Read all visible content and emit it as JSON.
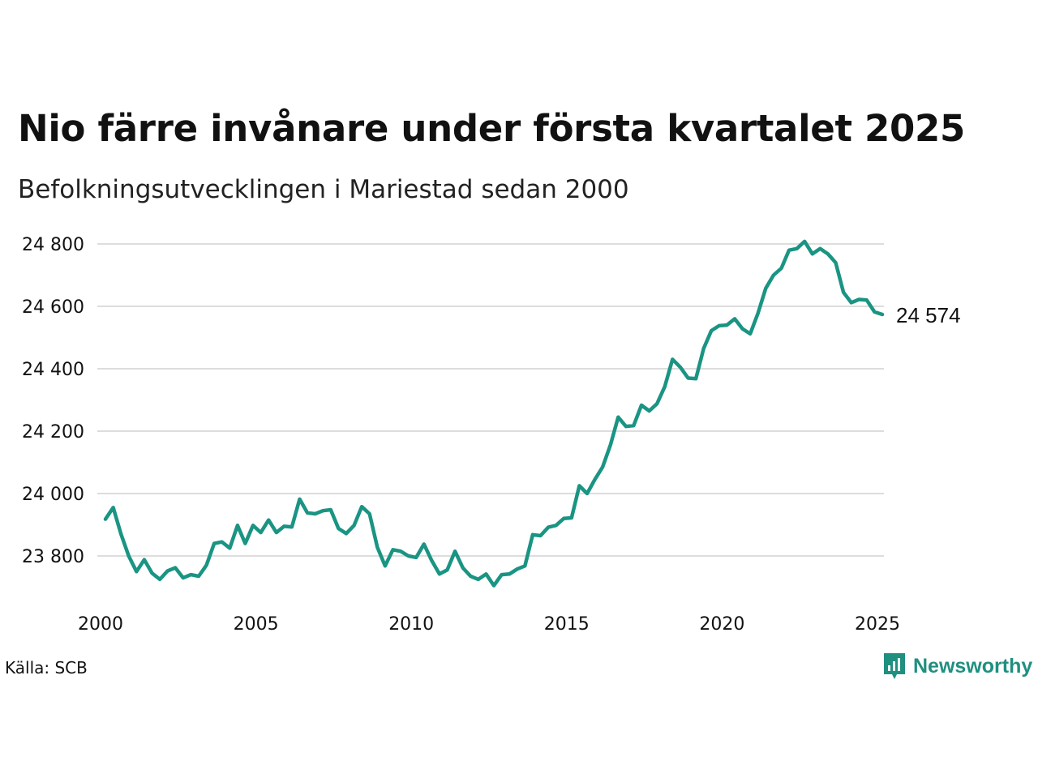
{
  "title": "Nio färre invånare under första kvartalet 2025",
  "subtitle": "Befolkningsutvecklingen i Mariestad sedan 2000",
  "source": "Källa: SCB",
  "brand": "Newsworthy",
  "colors": {
    "line": "#1a9483",
    "grid": "#dddddd",
    "brand": "#1f8f80"
  },
  "chart_data": {
    "type": "line",
    "x_ticks": [
      "2000",
      "2005",
      "2010",
      "2015",
      "2020",
      "2025"
    ],
    "y_ticks": [
      "23 800",
      "24 000",
      "24 200",
      "24 400",
      "24 600",
      "24 800"
    ],
    "xlim": [
      "2000-Q1",
      "2025-Q1"
    ],
    "ylim": [
      23700,
      24820
    ],
    "grid": "horizontal",
    "end_label": "24 574",
    "x": [
      "2000-Q1",
      "2000-Q2",
      "2000-Q3",
      "2000-Q4",
      "2001-Q1",
      "2001-Q2",
      "2001-Q3",
      "2001-Q4",
      "2002-Q1",
      "2002-Q2",
      "2002-Q3",
      "2002-Q4",
      "2003-Q1",
      "2003-Q2",
      "2003-Q3",
      "2003-Q4",
      "2004-Q1",
      "2004-Q2",
      "2004-Q3",
      "2004-Q4",
      "2005-Q1",
      "2005-Q2",
      "2005-Q3",
      "2005-Q4",
      "2006-Q1",
      "2006-Q2",
      "2006-Q3",
      "2006-Q4",
      "2007-Q1",
      "2007-Q2",
      "2007-Q3",
      "2007-Q4",
      "2008-Q1",
      "2008-Q2",
      "2008-Q3",
      "2008-Q4",
      "2009-Q1",
      "2009-Q2",
      "2009-Q3",
      "2009-Q4",
      "2010-Q1",
      "2010-Q2",
      "2010-Q3",
      "2010-Q4",
      "2011-Q1",
      "2011-Q2",
      "2011-Q3",
      "2011-Q4",
      "2012-Q1",
      "2012-Q2",
      "2012-Q3",
      "2012-Q4",
      "2013-Q1",
      "2013-Q2",
      "2013-Q3",
      "2013-Q4",
      "2014-Q1",
      "2014-Q2",
      "2014-Q3",
      "2014-Q4",
      "2015-Q1",
      "2015-Q2",
      "2015-Q3",
      "2015-Q4",
      "2016-Q1",
      "2016-Q2",
      "2016-Q3",
      "2016-Q4",
      "2017-Q1",
      "2017-Q2",
      "2017-Q3",
      "2017-Q4",
      "2018-Q1",
      "2018-Q2",
      "2018-Q3",
      "2018-Q4",
      "2019-Q1",
      "2019-Q2",
      "2019-Q3",
      "2019-Q4",
      "2020-Q1",
      "2020-Q2",
      "2020-Q3",
      "2020-Q4",
      "2021-Q1",
      "2021-Q2",
      "2021-Q3",
      "2021-Q4",
      "2022-Q1",
      "2022-Q2",
      "2022-Q3",
      "2022-Q4",
      "2023-Q1",
      "2023-Q2",
      "2023-Q3",
      "2023-Q4",
      "2024-Q1",
      "2024-Q2",
      "2024-Q3",
      "2024-Q4",
      "2025-Q1"
    ],
    "values": [
      23918,
      23955,
      23870,
      23800,
      23750,
      23788,
      23745,
      23725,
      23752,
      23762,
      23730,
      23740,
      23735,
      23770,
      23840,
      23845,
      23825,
      23898,
      23840,
      23898,
      23875,
      23915,
      23875,
      23895,
      23893,
      23982,
      23938,
      23935,
      23945,
      23948,
      23888,
      23872,
      23898,
      23958,
      23935,
      23828,
      23768,
      23820,
      23815,
      23800,
      23795,
      23838,
      23785,
      23742,
      23755,
      23815,
      23762,
      23735,
      23725,
      23742,
      23705,
      23740,
      23742,
      23758,
      23768,
      23868,
      23865,
      23892,
      23898,
      23920,
      23922,
      24025,
      24000,
      24045,
      24085,
      24155,
      24245,
      24215,
      24218,
      24283,
      24265,
      24288,
      24343,
      24430,
      24405,
      24370,
      24368,
      24465,
      24522,
      24538,
      24540,
      24560,
      24528,
      24512,
      24578,
      24658,
      24700,
      24722,
      24780,
      24785,
      24808,
      24768,
      24785,
      24768,
      24740,
      24645,
      24612,
      24622,
      24620,
      24582,
      24574
    ]
  }
}
